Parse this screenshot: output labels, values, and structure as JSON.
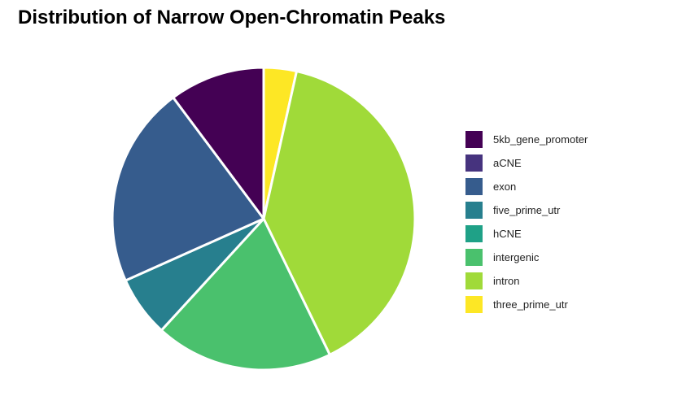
{
  "chart_data": {
    "type": "pie",
    "title": "Distribution of Narrow Open-Chromatin Peaks",
    "start": "12 o'clock",
    "direction": "clockwise",
    "slice_border_color": "#ffffff",
    "legend_position": "right",
    "slices": [
      {
        "label": "5kb_gene_promoter",
        "value": 10.2,
        "color": "#440154"
      },
      {
        "label": "aCNE",
        "value": 0.0,
        "color": "#46337E"
      },
      {
        "label": "exon",
        "value": 21.5,
        "color": "#365C8D"
      },
      {
        "label": "five_prime_utr",
        "value": 6.5,
        "color": "#277F8E"
      },
      {
        "label": "hCNE",
        "value": 0.0,
        "color": "#1FA187"
      },
      {
        "label": "intergenic",
        "value": 19.0,
        "color": "#4AC16D"
      },
      {
        "label": "intron",
        "value": 39.3,
        "color": "#A0DA39"
      },
      {
        "label": "three_prime_utr",
        "value": 3.5,
        "color": "#FDE725"
      }
    ],
    "pie_order": [
      "three_prime_utr",
      "intron",
      "intergenic",
      "hCNE",
      "five_prime_utr",
      "exon",
      "aCNE",
      "5kb_gene_promoter"
    ]
  }
}
